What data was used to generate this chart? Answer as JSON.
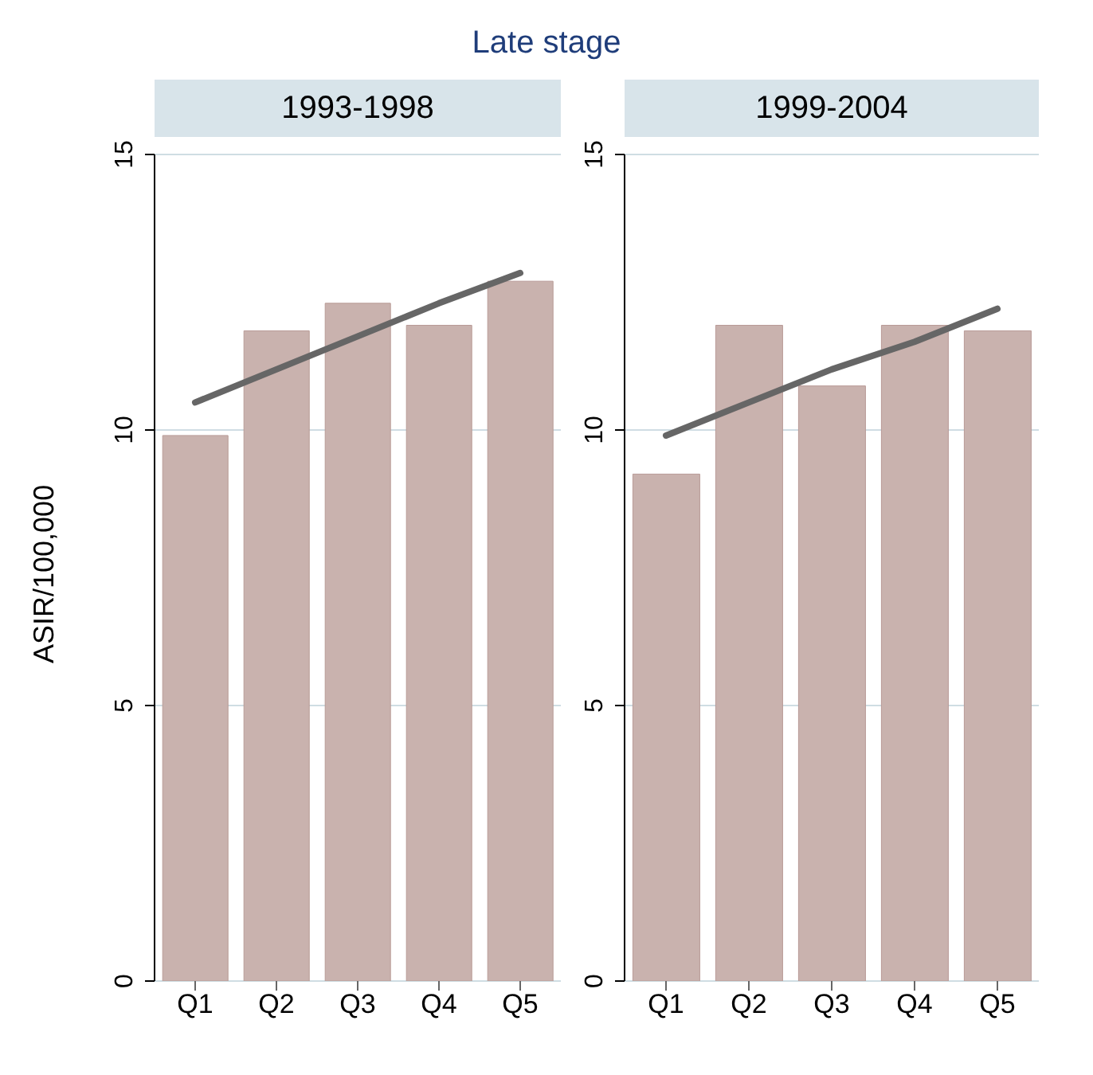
{
  "chart_data": [
    {
      "type": "bar",
      "title": "Late stage",
      "subtitle": "1993-1998",
      "ylabel": "ASIR/100,000",
      "categories": [
        "Q1",
        "Q2",
        "Q3",
        "Q4",
        "Q5"
      ],
      "series": [
        {
          "color": "#c9b2ae",
          "values": [
            9.9,
            11.8,
            12.3,
            11.9,
            12.7
          ]
        },
        {
          "type": "line",
          "color": "#666666",
          "values": [
            10.5,
            11.1,
            11.7,
            12.3,
            12.85
          ]
        }
      ],
      "ylim": [
        0,
        15
      ],
      "yticks": [
        0,
        5,
        10,
        15
      ],
      "grid": "y",
      "legend": false,
      "marker": "none",
      "line_style": "solid"
    },
    {
      "type": "bar",
      "subtitle": "1999-2004",
      "categories": [
        "Q1",
        "Q2",
        "Q3",
        "Q4",
        "Q5"
      ],
      "series": [
        {
          "color": "#c9b2ae",
          "values": [
            9.2,
            11.9,
            10.8,
            11.9,
            11.8
          ]
        },
        {
          "type": "line",
          "color": "#666666",
          "values": [
            9.9,
            10.5,
            11.1,
            11.6,
            12.2
          ]
        }
      ],
      "ylim": [
        0,
        15
      ],
      "yticks": [
        0,
        5,
        10,
        15
      ],
      "grid": "y",
      "legend": false,
      "marker": "none",
      "line_style": "solid"
    }
  ]
}
